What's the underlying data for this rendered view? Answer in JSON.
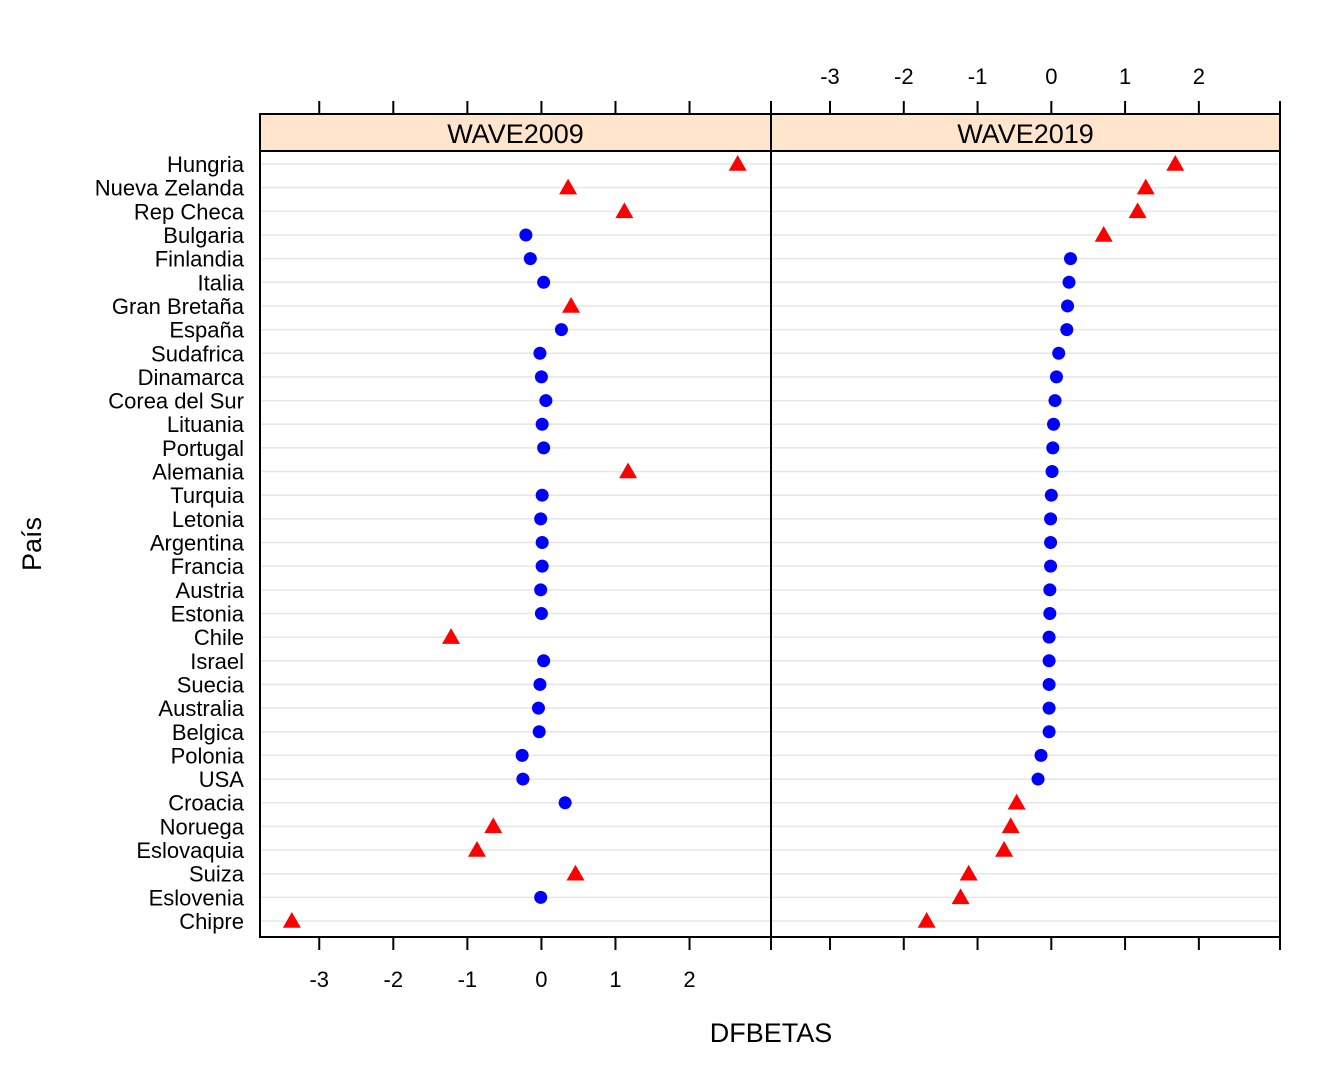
{
  "chart_data": {
    "type": "dotplot",
    "xlabel": "DFBETAS",
    "ylabel": "País",
    "xlim": [
      -3.8,
      3.1
    ],
    "xticks": [
      -3,
      -2,
      -1,
      0,
      1,
      2
    ],
    "tick_labels": [
      "-3",
      "-2",
      "-1",
      "0",
      "1",
      "2"
    ],
    "grid": true,
    "colors": {
      "circle": "#0000FF",
      "triangle": "#FF0000",
      "strip": "#FFE5CC",
      "grid": "#E6E6E6"
    },
    "categories": [
      "Hungria",
      "Nueva Zelanda",
      "Rep Checa",
      "Bulgaria",
      "Finlandia",
      "Italia",
      "Gran Bretaña",
      "España",
      "Sudafrica",
      "Dinamarca",
      "Corea del Sur",
      "Lituania",
      "Portugal",
      "Alemania",
      "Turquia",
      "Letonia",
      "Argentina",
      "Francia",
      "Austria",
      "Estonia",
      "Chile",
      "Israel",
      "Suecia",
      "Australia",
      "Belgica",
      "Polonia",
      "USA",
      "Croacia",
      "Noruega",
      "Eslovaquia",
      "Suiza",
      "Eslovenia",
      "Chipre"
    ],
    "panels": [
      {
        "title": "WAVE2009",
        "values": [
          2.65,
          0.36,
          1.12,
          -0.21,
          -0.15,
          0.03,
          0.4,
          0.27,
          -0.02,
          0.0,
          0.06,
          0.01,
          0.03,
          1.17,
          0.01,
          -0.01,
          0.01,
          0.01,
          -0.01,
          0.0,
          -1.22,
          0.03,
          -0.02,
          -0.04,
          -0.03,
          -0.26,
          -0.25,
          0.32,
          -0.65,
          -0.87,
          0.46,
          -0.01,
          -3.37
        ],
        "flagged": [
          true,
          true,
          true,
          false,
          false,
          false,
          true,
          false,
          false,
          false,
          false,
          false,
          false,
          true,
          false,
          false,
          false,
          false,
          false,
          false,
          true,
          false,
          false,
          false,
          false,
          false,
          false,
          false,
          true,
          true,
          true,
          false,
          true
        ]
      },
      {
        "title": "WAVE2019",
        "values": [
          1.68,
          1.28,
          1.17,
          0.71,
          0.26,
          0.24,
          0.22,
          0.21,
          0.1,
          0.07,
          0.05,
          0.03,
          0.02,
          0.01,
          0.0,
          -0.01,
          -0.01,
          -0.01,
          -0.02,
          -0.02,
          -0.03,
          -0.03,
          -0.03,
          -0.03,
          -0.03,
          -0.14,
          -0.18,
          -0.47,
          -0.55,
          -0.64,
          -1.12,
          -1.23,
          -1.69
        ],
        "flagged": [
          true,
          true,
          true,
          true,
          false,
          false,
          false,
          false,
          false,
          false,
          false,
          false,
          false,
          false,
          false,
          false,
          false,
          false,
          false,
          false,
          false,
          false,
          false,
          false,
          false,
          false,
          false,
          true,
          true,
          true,
          true,
          true,
          true
        ]
      }
    ]
  }
}
